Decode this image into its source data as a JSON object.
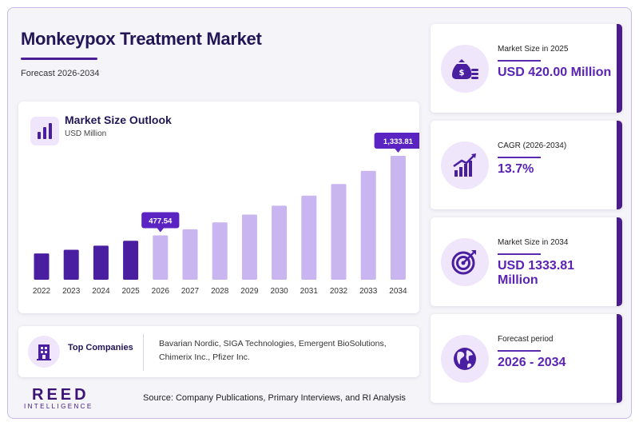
{
  "header": {
    "title": "Monkeypox Treatment Market",
    "subtitle": "Forecast 2026-2034"
  },
  "chart_card": {
    "title": "Market Size Outlook",
    "unit": "USD Million",
    "icon": "bar-chart-icon"
  },
  "chart_data": {
    "type": "bar",
    "categories": [
      "2022",
      "2023",
      "2024",
      "2025",
      "2026",
      "2027",
      "2028",
      "2029",
      "2030",
      "2031",
      "2032",
      "2033",
      "2034"
    ],
    "values": [
      283,
      323,
      367,
      420,
      477.54,
      543,
      617,
      701,
      797,
      906,
      1031,
      1172,
      1333.81
    ],
    "data_labels": [
      {
        "category": "2026",
        "text": "477.54"
      },
      {
        "category": "2034",
        "text": "1,333.81"
      }
    ],
    "historical_until": "2025",
    "colors": {
      "historical": "#4a1ea0",
      "forecast": "#c9b5ef",
      "label_bg": "#5b23c2"
    },
    "grid": false
  },
  "companies": {
    "label": "Top Companies",
    "icon": "building-icon",
    "lines": [
      "Bavarian Nordic, SIGA Technologies, Emergent BioSolutions,",
      "Chimerix Inc., Pfizer Inc."
    ]
  },
  "brand": {
    "name": "REED",
    "tagline": "INTELLIGENCE"
  },
  "source": "Source: Company Publications, Primary Interviews, and RI Analysis",
  "stats": [
    {
      "label": "Market Size in 2025",
      "value": "USD 420.00 Million",
      "icon": "money-bag-icon"
    },
    {
      "label": "CAGR (2026-2034)",
      "value": "13.7%",
      "icon": "growth-chart-icon"
    },
    {
      "label": "Market Size in 2034",
      "value": "USD 1333.81 Million",
      "icon": "target-icon"
    },
    {
      "label": "Forecast period",
      "value": "2026 - 2034",
      "icon": "globe-icon"
    }
  ],
  "accent_color": "#4b1d8a"
}
